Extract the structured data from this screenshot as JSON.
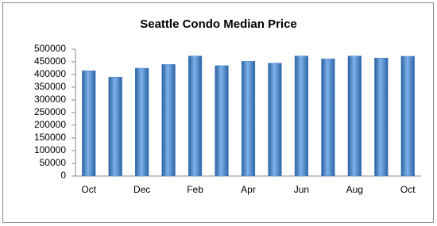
{
  "chart_data": {
    "type": "bar",
    "title": "Seattle Condo Median Price",
    "categories": [
      "Oct",
      null,
      "Dec",
      null,
      "Feb",
      null,
      "Apr",
      null,
      "Jun",
      null,
      "Aug",
      null,
      "Oct"
    ],
    "values": [
      415000,
      390000,
      425000,
      440000,
      473000,
      435000,
      452000,
      445000,
      473000,
      462000,
      473000,
      465000,
      472000
    ],
    "color": "#3f7fc6",
    "ylim": [
      0,
      500000
    ],
    "yticks": [
      0,
      50000,
      100000,
      150000,
      200000,
      250000,
      300000,
      350000,
      400000,
      450000,
      500000
    ],
    "grid": false
  }
}
